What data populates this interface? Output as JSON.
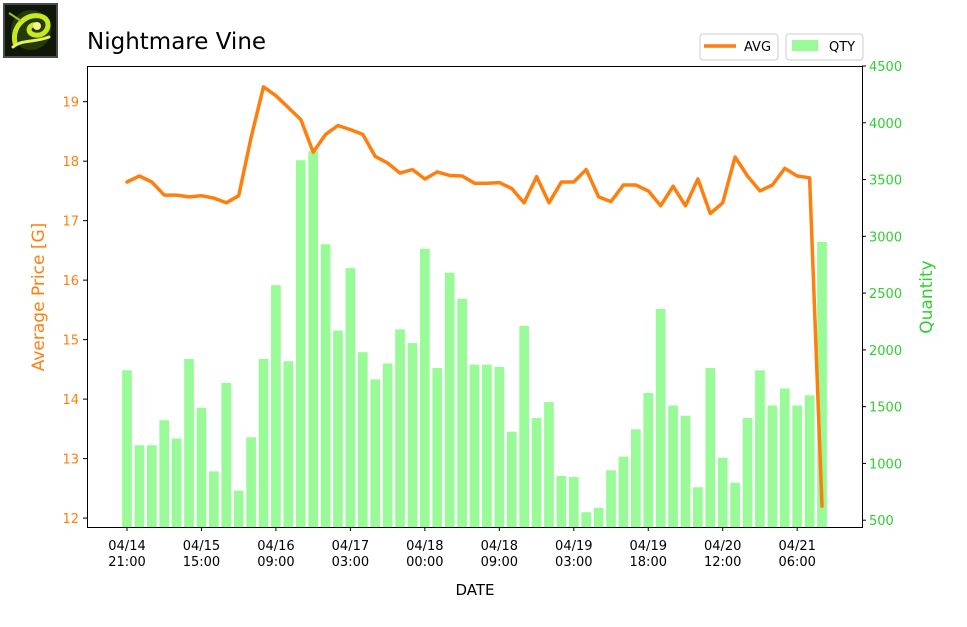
{
  "chart_data": {
    "type": "bar+line",
    "title": "Nightmare Vine",
    "xlabel": "DATE",
    "ylabel_left": "Average Price [G]",
    "ylabel_right": "Quantity",
    "ylim_left": [
      11.85,
      19.6
    ],
    "ylim_right": [
      440,
      4500
    ],
    "yticks_left": [
      "12",
      "13",
      "14",
      "15",
      "16",
      "17",
      "18",
      "19"
    ],
    "yticks_right": [
      "500",
      "1000",
      "1500",
      "2000",
      "2500",
      "3000",
      "3500",
      "4000",
      "4500"
    ],
    "xticks": [
      {
        "idx": 0,
        "line1": "04/14",
        "line2": "21:00"
      },
      {
        "idx": 6,
        "line1": "04/15",
        "line2": "15:00"
      },
      {
        "idx": 12,
        "line1": "04/16",
        "line2": "09:00"
      },
      {
        "idx": 18,
        "line1": "04/17",
        "line2": "03:00"
      },
      {
        "idx": 24,
        "line1": "04/18",
        "line2": "00:00"
      },
      {
        "idx": 30,
        "line1": "04/18",
        "line2": "09:00"
      },
      {
        "idx": 36,
        "line1": "04/19",
        "line2": "03:00"
      },
      {
        "idx": 42,
        "line1": "04/19",
        "line2": "18:00"
      },
      {
        "idx": 48,
        "line1": "04/20",
        "line2": "12:00"
      },
      {
        "idx": 54,
        "line1": "04/21",
        "line2": "06:00"
      }
    ],
    "legend": {
      "placement": "top-right, above plot",
      "avg_label": "AVG",
      "qty_label": "QTY"
    },
    "colors": {
      "avg": "#ff7f0e",
      "qty": "#98fb98",
      "left_axis": "#ff7f0e",
      "right_axis": "#32cd32"
    },
    "series": [
      {
        "name": "QTY",
        "axis": "right",
        "kind": "bar",
        "values": [
          1820,
          1160,
          1160,
          1380,
          1220,
          1920,
          1490,
          930,
          1710,
          760,
          1230,
          1920,
          2570,
          1900,
          3670,
          3750,
          2930,
          2170,
          2720,
          1980,
          1740,
          1880,
          2180,
          2060,
          2890,
          1840,
          2680,
          2450,
          1870,
          1870,
          1850,
          1280,
          2210,
          1400,
          1540,
          890,
          880,
          570,
          610,
          940,
          1060,
          1300,
          1620,
          2360,
          1510,
          1420,
          790,
          1840,
          1050,
          830,
          1400,
          1820,
          1510,
          1660,
          1510,
          1600,
          2950
        ]
      },
      {
        "name": "AVG",
        "axis": "left",
        "kind": "line",
        "values": [
          17.65,
          17.75,
          17.65,
          17.43,
          17.43,
          17.4,
          17.42,
          17.38,
          17.3,
          17.42,
          18.4,
          19.25,
          19.1,
          18.9,
          18.7,
          18.15,
          18.45,
          18.6,
          18.53,
          18.45,
          18.08,
          17.97,
          17.8,
          17.86,
          17.7,
          17.82,
          17.76,
          17.75,
          17.63,
          17.63,
          17.64,
          17.54,
          17.3,
          17.74,
          17.3,
          17.65,
          17.65,
          17.86,
          17.4,
          17.32,
          17.6,
          17.6,
          17.5,
          17.25,
          17.58,
          17.25,
          17.7,
          17.12,
          17.3,
          18.07,
          17.75,
          17.5,
          17.6,
          17.88,
          17.75,
          17.72,
          12.2
        ]
      }
    ]
  }
}
